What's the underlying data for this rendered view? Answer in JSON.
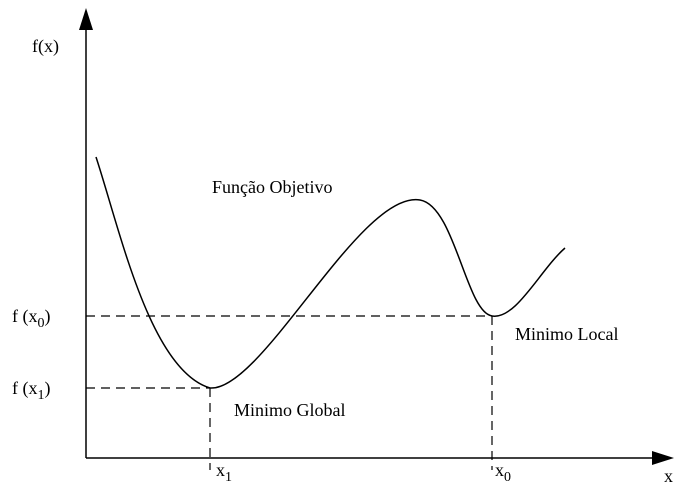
{
  "y_axis_label": "f(x)",
  "x_axis_label": "x",
  "curve_label": "Função Objetivo",
  "local_min_label": "Minimo Local",
  "global_min_label": "Minimo Global",
  "f_x0_label": {
    "text": "f (x",
    "sub": "0",
    "tail": ")"
  },
  "f_x1_label": {
    "text": "f (x",
    "sub": "1",
    "tail": ")"
  },
  "x1_label": {
    "text": "x",
    "sub": "1"
  },
  "x0_label": {
    "text": "x",
    "sub": "0"
  }
}
